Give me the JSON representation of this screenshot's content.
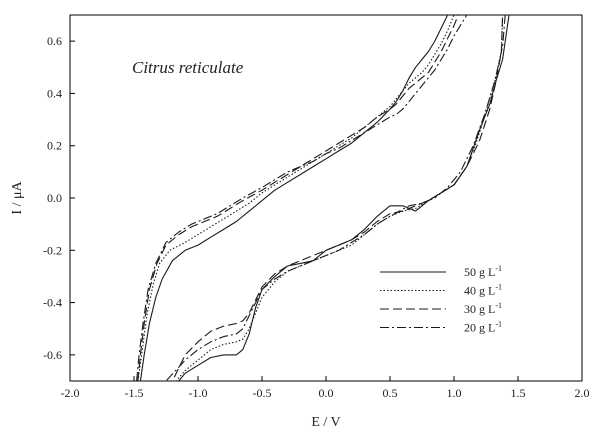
{
  "chart_data": {
    "type": "line",
    "xlabel": "E / V",
    "ylabel": "I / μA",
    "xlim": [
      -2.0,
      2.0
    ],
    "ylim": [
      -0.7,
      0.7
    ],
    "xticks": [
      "-2.0",
      "-1.5",
      "-1.0",
      "-0.5",
      "0.0",
      "0.5",
      "1.0",
      "1.5",
      "2.0"
    ],
    "yticks": [
      "-0.6",
      "-0.4",
      "-0.2",
      "0.0",
      "0.2",
      "0.4",
      "0.6"
    ],
    "annotation": "Citrus reticulate",
    "legend_position": "lower-right",
    "series": [
      {
        "name": "50 g L-1",
        "label_main": "50 g L",
        "label_sup": "-1",
        "dash": "solid",
        "x": [
          -1.45,
          -1.42,
          -1.38,
          -1.33,
          -1.28,
          -1.2,
          -1.1,
          -1.0,
          -0.9,
          -0.8,
          -0.7,
          -0.6,
          -0.5,
          -0.4,
          -0.3,
          -0.2,
          -0.1,
          0.0,
          0.1,
          0.2,
          0.3,
          0.4,
          0.5,
          0.55,
          0.6,
          0.65,
          0.7,
          0.75,
          0.8,
          0.85,
          0.9,
          0.95,
          0.98,
          0.98,
          1.1,
          1.2,
          1.3,
          1.35,
          1.38,
          1.42,
          1.43,
          1.38,
          1.33,
          1.28,
          1.2,
          1.1,
          1.0,
          0.9,
          0.8,
          0.7,
          0.6,
          0.5,
          0.4,
          0.3,
          0.2,
          0.1,
          0.0,
          -0.1,
          -0.2,
          -0.3,
          -0.4,
          -0.5,
          -0.55,
          -0.6,
          -0.65,
          -0.7,
          -0.8,
          -0.9,
          -1.0,
          -1.1,
          -1.15
        ],
        "y": [
          -0.7,
          -0.6,
          -0.48,
          -0.38,
          -0.31,
          -0.24,
          -0.2,
          -0.18,
          -0.15,
          -0.12,
          -0.09,
          -0.05,
          -0.01,
          0.03,
          0.06,
          0.09,
          0.12,
          0.15,
          0.18,
          0.21,
          0.25,
          0.29,
          0.34,
          0.37,
          0.41,
          0.46,
          0.5,
          0.53,
          0.56,
          0.6,
          0.65,
          0.7,
          0.73,
          0.73,
          0.73,
          0.73,
          0.73,
          0.73,
          0.73,
          0.73,
          0.7,
          0.53,
          0.45,
          0.36,
          0.26,
          0.12,
          0.05,
          0.02,
          -0.01,
          -0.05,
          -0.03,
          -0.03,
          -0.07,
          -0.12,
          -0.16,
          -0.18,
          -0.2,
          -0.24,
          -0.25,
          -0.26,
          -0.3,
          -0.35,
          -0.42,
          -0.52,
          -0.58,
          -0.6,
          -0.6,
          -0.61,
          -0.64,
          -0.67,
          -0.7
        ]
      },
      {
        "name": "40 g L-1",
        "label_main": "40 g L",
        "label_sup": "-1",
        "dash": "dotted",
        "x": [
          -1.47,
          -1.44,
          -1.4,
          -1.35,
          -1.3,
          -1.22,
          -1.1,
          -1.0,
          -0.9,
          -0.8,
          -0.7,
          -0.6,
          -0.5,
          -0.4,
          -0.3,
          -0.2,
          -0.1,
          0.0,
          0.1,
          0.2,
          0.3,
          0.4,
          0.5,
          0.55,
          0.6,
          0.65,
          0.7,
          0.75,
          0.8,
          0.85,
          0.9,
          0.95,
          1.0,
          1.02,
          1.38,
          1.37,
          1.32,
          1.25,
          1.18,
          1.1,
          1.0,
          0.9,
          0.8,
          0.7,
          0.6,
          0.5,
          0.4,
          0.3,
          0.2,
          0.1,
          0.0,
          -0.1,
          -0.2,
          -0.3,
          -0.4,
          -0.5,
          -0.55,
          -0.6,
          -0.65,
          -0.7,
          -0.8,
          -0.9,
          -1.0,
          -1.1,
          -1.17
        ],
        "y": [
          -0.7,
          -0.6,
          -0.45,
          -0.33,
          -0.25,
          -0.2,
          -0.17,
          -0.14,
          -0.11,
          -0.08,
          -0.05,
          -0.02,
          0.02,
          0.05,
          0.08,
          0.11,
          0.14,
          0.17,
          0.2,
          0.23,
          0.27,
          0.31,
          0.35,
          0.38,
          0.41,
          0.44,
          0.46,
          0.48,
          0.51,
          0.55,
          0.59,
          0.64,
          0.7,
          0.73,
          0.7,
          0.56,
          0.45,
          0.33,
          0.22,
          0.12,
          0.05,
          0.02,
          -0.01,
          -0.04,
          -0.05,
          -0.07,
          -0.1,
          -0.14,
          -0.18,
          -0.2,
          -0.22,
          -0.24,
          -0.26,
          -0.28,
          -0.32,
          -0.38,
          -0.44,
          -0.5,
          -0.54,
          -0.55,
          -0.56,
          -0.58,
          -0.62,
          -0.66,
          -0.7
        ]
      },
      {
        "name": "30 g L-1",
        "label_main": "30 g L",
        "label_sup": "-1",
        "dash": "dashed",
        "x": [
          -1.47,
          -1.45,
          -1.42,
          -1.38,
          -1.32,
          -1.25,
          -1.15,
          -1.05,
          -0.95,
          -0.85,
          -0.75,
          -0.65,
          -0.5,
          -0.4,
          -0.3,
          -0.2,
          -0.1,
          0.0,
          0.1,
          0.2,
          0.3,
          0.4,
          0.5,
          0.55,
          0.6,
          0.65,
          0.7,
          0.75,
          0.8,
          0.85,
          0.9,
          0.95,
          1.0,
          1.05,
          1.38,
          1.37,
          1.33,
          1.28,
          1.2,
          1.1,
          1.0,
          0.9,
          0.8,
          0.7,
          0.6,
          0.5,
          0.4,
          0.3,
          0.2,
          0.1,
          0.0,
          -0.1,
          -0.2,
          -0.3,
          -0.4,
          -0.5,
          -0.55,
          -0.6,
          -0.65,
          -0.7,
          -0.8,
          -0.9,
          -1.0,
          -1.1,
          -1.2
        ],
        "y": [
          -0.7,
          -0.6,
          -0.48,
          -0.35,
          -0.25,
          -0.18,
          -0.14,
          -0.11,
          -0.09,
          -0.07,
          -0.04,
          -0.01,
          0.03,
          0.06,
          0.09,
          0.12,
          0.15,
          0.18,
          0.21,
          0.24,
          0.27,
          0.31,
          0.34,
          0.36,
          0.39,
          0.42,
          0.44,
          0.46,
          0.48,
          0.52,
          0.56,
          0.61,
          0.66,
          0.72,
          0.7,
          0.56,
          0.45,
          0.34,
          0.22,
          0.12,
          0.05,
          0.02,
          -0.01,
          -0.03,
          -0.05,
          -0.06,
          -0.09,
          -0.13,
          -0.16,
          -0.18,
          -0.2,
          -0.22,
          -0.24,
          -0.26,
          -0.29,
          -0.34,
          -0.39,
          -0.44,
          -0.47,
          -0.48,
          -0.49,
          -0.51,
          -0.55,
          -0.6,
          -0.7
        ]
      },
      {
        "name": "20 g L-1",
        "label_main": "20 g L",
        "label_sup": "-1",
        "dash": "dashdot",
        "x": [
          -1.48,
          -1.46,
          -1.43,
          -1.39,
          -1.33,
          -1.25,
          -1.15,
          -1.05,
          -0.95,
          -0.85,
          -0.75,
          -0.65,
          -0.5,
          -0.4,
          -0.3,
          -0.2,
          -0.1,
          0.0,
          0.1,
          0.2,
          0.3,
          0.4,
          0.5,
          0.55,
          0.6,
          0.65,
          0.7,
          0.75,
          0.8,
          0.85,
          0.9,
          0.95,
          1.0,
          1.1,
          1.2,
          1.3,
          1.35,
          1.4,
          1.4,
          1.38,
          1.32,
          1.24,
          1.15,
          1.05,
          0.95,
          0.85,
          0.75,
          0.65,
          0.5,
          0.4,
          0.3,
          0.2,
          0.1,
          0.0,
          -0.1,
          -0.2,
          -0.3,
          -0.4,
          -0.5,
          -0.55,
          -0.6,
          -0.65,
          -0.7,
          -0.8,
          -0.9,
          -1.0,
          -1.1,
          -1.25
        ],
        "y": [
          -0.7,
          -0.6,
          -0.48,
          -0.35,
          -0.25,
          -0.17,
          -0.13,
          -0.1,
          -0.08,
          -0.06,
          -0.03,
          0.0,
          0.04,
          0.07,
          0.1,
          0.12,
          0.14,
          0.17,
          0.19,
          0.22,
          0.25,
          0.28,
          0.31,
          0.32,
          0.34,
          0.37,
          0.4,
          0.43,
          0.46,
          0.49,
          0.53,
          0.57,
          0.62,
          0.7,
          0.73,
          0.73,
          0.73,
          0.73,
          0.7,
          0.58,
          0.45,
          0.32,
          0.2,
          0.1,
          0.04,
          0.0,
          -0.02,
          -0.03,
          -0.07,
          -0.1,
          -0.14,
          -0.17,
          -0.2,
          -0.22,
          -0.24,
          -0.26,
          -0.28,
          -0.31,
          -0.35,
          -0.4,
          -0.45,
          -0.5,
          -0.52,
          -0.53,
          -0.55,
          -0.58,
          -0.62,
          -0.7
        ]
      }
    ]
  }
}
